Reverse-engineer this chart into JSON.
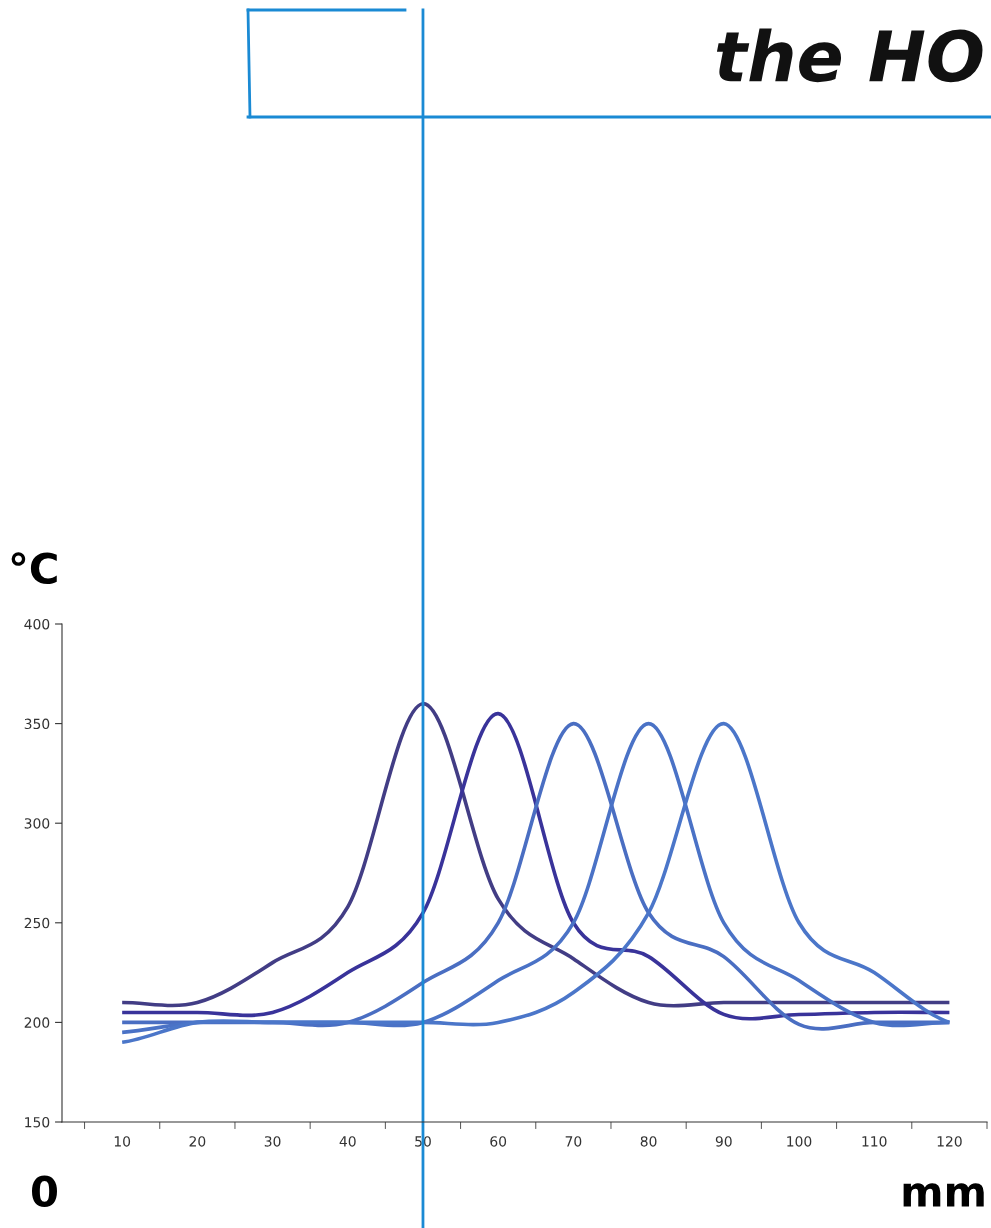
{
  "chart_data": {
    "type": "line",
    "title": "the HO",
    "ylabel": "°C",
    "xlabel": "mm",
    "annotations": [
      "0"
    ],
    "categories": [
      "10",
      "20",
      "30",
      "40",
      "50",
      "60",
      "70",
      "80",
      "90",
      "100",
      "110",
      "120"
    ],
    "series": [
      {
        "color": "#423d85",
        "values": [
          210,
          210,
          230,
          258,
          360,
          262,
          232,
          210,
          210,
          210,
          210,
          210
        ]
      },
      {
        "color": "#39339a",
        "values": [
          205,
          205,
          205,
          225,
          255,
          355,
          250,
          233,
          204,
          204,
          205,
          205
        ]
      },
      {
        "color": "#4a6ec2",
        "values": [
          200,
          200,
          200,
          200,
          220,
          250,
          350,
          255,
          233,
          199,
          200,
          200
        ]
      },
      {
        "color": "#4a72c6",
        "values": [
          195,
          200,
          200,
          200,
          200,
          221,
          250,
          350,
          250,
          221,
          200,
          200
        ]
      },
      {
        "color": "#4b76c9",
        "values": [
          190,
          200,
          200,
          200,
          200,
          200,
          215,
          255,
          350,
          250,
          225,
          200
        ]
      }
    ],
    "ylim": [
      150,
      400
    ],
    "yticks": [
      150,
      200,
      250,
      300,
      350,
      400
    ],
    "ref_lines": [
      {
        "axis": "x",
        "value": "50",
        "color": "#1a8ad4"
      }
    ],
    "grid": false,
    "legend": false,
    "marker": "none",
    "line_style": "solid"
  }
}
